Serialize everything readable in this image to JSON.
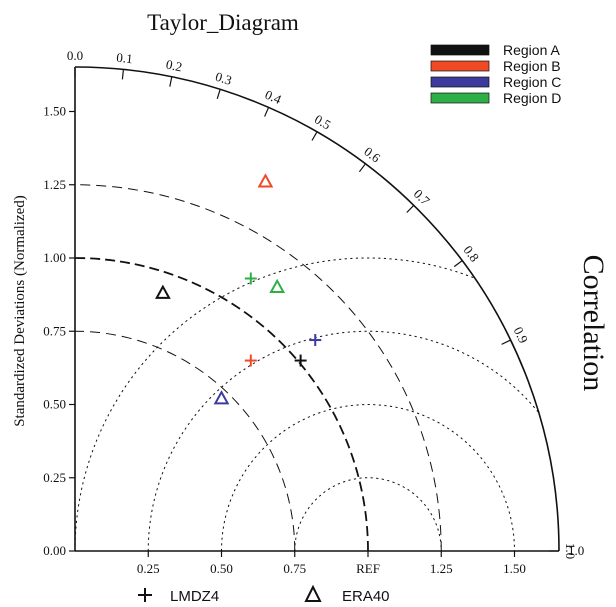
{
  "chart_data": {
    "type": "scatter",
    "subtype": "taylor-diagram",
    "title": "Taylor_Diagram",
    "ylabel": "Standardized Deviations (Normalized)",
    "angular_label": "Correlation",
    "x_tick_labels": [
      "0.25",
      "0.50",
      "0.75",
      "REF",
      "1.25",
      "1.50"
    ],
    "y_tick_labels": [
      "0.00",
      "0.25",
      "0.50",
      "0.75",
      "1.00",
      "1.25",
      "1.50"
    ],
    "x_ticks": [
      0.25,
      0.5,
      0.75,
      1.0,
      1.25,
      1.5
    ],
    "y_ticks": [
      0.0,
      0.25,
      0.5,
      0.75,
      1.0,
      1.25,
      1.5
    ],
    "std_range": [
      0,
      1.65
    ],
    "correlation_ticks": [
      "0.0",
      "0.1",
      "0.2",
      "0.3",
      "0.4",
      "0.5",
      "0.6",
      "0.7",
      "0.8",
      "0.9",
      "1.0"
    ],
    "correlation_values": [
      0.0,
      0.1,
      0.2,
      0.3,
      0.4,
      0.5,
      0.6,
      0.7,
      0.8,
      0.9,
      1.0
    ],
    "std_arcs": [
      0.75,
      1.0,
      1.25
    ],
    "rms_arcs": [
      0.25,
      0.5,
      0.75,
      1.0
    ],
    "legend_regions": [
      {
        "name": "Region A",
        "color": "#111111"
      },
      {
        "name": "Region B",
        "color": "#ef4a24"
      },
      {
        "name": "Region C",
        "color": "#3c3a9c"
      },
      {
        "name": "Region D",
        "color": "#2eaf45"
      }
    ],
    "legend_markers": [
      {
        "label": "LMDZ4",
        "marker": "plus"
      },
      {
        "label": "ERA40",
        "marker": "triangle"
      }
    ],
    "series": [
      {
        "name": "LMDZ4",
        "marker": "plus",
        "points": [
          {
            "region": "Region A",
            "x": 0.77,
            "y": 0.65
          },
          {
            "region": "Region B",
            "x": 0.6,
            "y": 0.65
          },
          {
            "region": "Region C",
            "x": 0.82,
            "y": 0.72
          },
          {
            "region": "Region D",
            "x": 0.6,
            "y": 0.93
          }
        ]
      },
      {
        "name": "ERA40",
        "marker": "triangle",
        "points": [
          {
            "region": "Region A",
            "x": 0.3,
            "y": 0.88
          },
          {
            "region": "Region B",
            "x": 0.65,
            "y": 1.26
          },
          {
            "region": "Region C",
            "x": 0.5,
            "y": 0.52
          },
          {
            "region": "Region D",
            "x": 0.69,
            "y": 0.9
          }
        ]
      }
    ]
  }
}
